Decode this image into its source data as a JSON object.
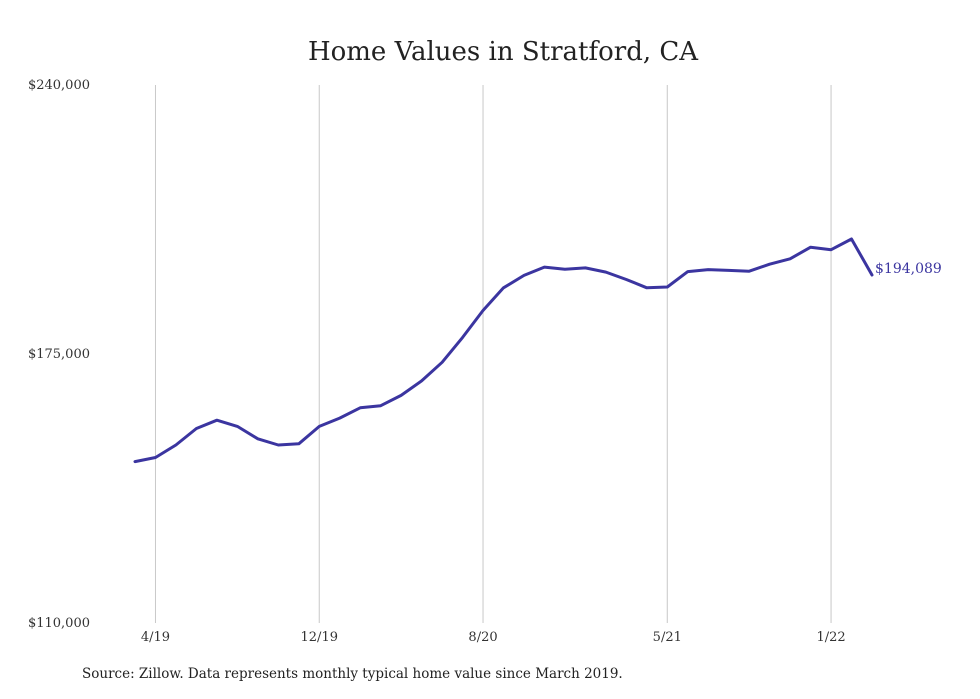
{
  "chart_data": {
    "type": "line",
    "title": "Home Values in Stratford, CA",
    "x_tick_labels": [
      "4/19",
      "12/19",
      "8/20",
      "5/21",
      "1/22"
    ],
    "y_tick_labels": [
      "$240,000",
      "$175,000",
      "$110,000"
    ],
    "ylim": [
      110000,
      240000
    ],
    "ytick_values": [
      240000,
      175000,
      110000
    ],
    "series": [
      {
        "color": "#3b35a0",
        "x": [
          "3/19",
          "4/19",
          "5/19",
          "6/19",
          "7/19",
          "8/19",
          "9/19",
          "10/19",
          "11/19",
          "12/19",
          "1/20",
          "2/20",
          "3/20",
          "4/20",
          "5/20",
          "6/20",
          "7/20",
          "8/20",
          "9/20",
          "10/20",
          "11/20",
          "12/20",
          "1/21",
          "2/21",
          "3/21",
          "4/21",
          "5/21",
          "6/21",
          "7/21",
          "8/21",
          "9/21",
          "10/21",
          "11/21",
          "12/21",
          "1/22",
          "2/22",
          "3/22"
        ],
        "values": [
          149000,
          150000,
          153000,
          157000,
          159000,
          157500,
          154500,
          153000,
          153300,
          157500,
          159500,
          162000,
          162500,
          165000,
          168500,
          173000,
          179000,
          185500,
          191000,
          194000,
          196000,
          195500,
          195800,
          194800,
          193000,
          191000,
          191200,
          194900,
          195400,
          195200,
          195000,
          196700,
          198000,
          200800,
          200200,
          202800,
          194089
        ],
        "end_label": "$194,089"
      }
    ],
    "grid": "vertical"
  },
  "footer": {
    "source": "Source: Zillow. Data represents monthly typical home value since March 2019."
  }
}
